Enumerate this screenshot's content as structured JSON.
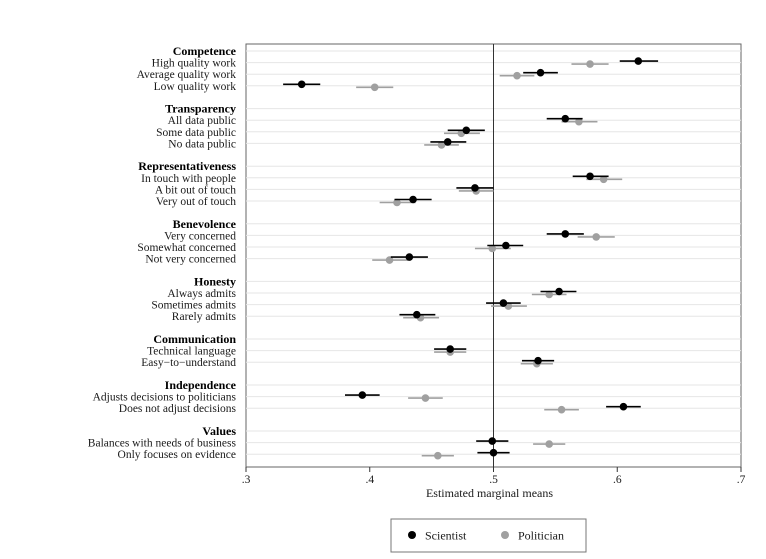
{
  "chart_data": {
    "type": "dot-whisker",
    "xlabel": "Estimated marginal means",
    "xlim": [
      0.3,
      0.7
    ],
    "xticks": [
      {
        "value": 0.3,
        "label": ".3"
      },
      {
        "value": 0.4,
        "label": ".4"
      },
      {
        "value": 0.5,
        "label": ".5"
      },
      {
        "value": 0.6,
        "label": ".6"
      },
      {
        "value": 0.7,
        "label": ".7"
      }
    ],
    "reference_line": 0.5,
    "colors": {
      "Scientist": "#000000",
      "Politician": "#a0a0a0"
    },
    "legend": [
      "Scientist",
      "Politician"
    ],
    "groups": [
      {
        "header": "Competence",
        "items": [
          {
            "label": "High quality work",
            "Scientist": [
              0.617,
              0.602,
              0.633
            ],
            "Politician": [
              0.578,
              0.563,
              0.593
            ]
          },
          {
            "label": "Average quality work",
            "Scientist": [
              0.538,
              0.524,
              0.552
            ],
            "Politician": [
              0.519,
              0.505,
              0.533
            ]
          },
          {
            "label": "Low quality work",
            "Scientist": [
              0.345,
              0.33,
              0.36
            ],
            "Politician": [
              0.404,
              0.389,
              0.419
            ]
          }
        ]
      },
      {
        "header": "Transparency",
        "items": [
          {
            "label": "All data public",
            "Scientist": [
              0.558,
              0.543,
              0.572
            ],
            "Politician": [
              0.569,
              0.555,
              0.584
            ]
          },
          {
            "label": "Some data public",
            "Scientist": [
              0.478,
              0.463,
              0.493
            ],
            "Politician": [
              0.474,
              0.46,
              0.489
            ]
          },
          {
            "label": "No data public",
            "Scientist": [
              0.463,
              0.449,
              0.478
            ],
            "Politician": [
              0.458,
              0.444,
              0.472
            ]
          }
        ]
      },
      {
        "header": "Representativeness",
        "items": [
          {
            "label": "In touch with people",
            "Scientist": [
              0.578,
              0.564,
              0.593
            ],
            "Politician": [
              0.589,
              0.575,
              0.604
            ]
          },
          {
            "label": "A bit out of touch",
            "Scientist": [
              0.485,
              0.47,
              0.5
            ],
            "Politician": [
              0.486,
              0.472,
              0.5
            ]
          },
          {
            "label": "Very out of touch",
            "Scientist": [
              0.435,
              0.42,
              0.45
            ],
            "Politician": [
              0.422,
              0.408,
              0.437
            ]
          }
        ]
      },
      {
        "header": "Benevolence",
        "items": [
          {
            "label": "Very concerned",
            "Scientist": [
              0.558,
              0.543,
              0.573
            ],
            "Politician": [
              0.583,
              0.568,
              0.598
            ]
          },
          {
            "label": "Somewhat concerned",
            "Scientist": [
              0.51,
              0.495,
              0.524
            ],
            "Politician": [
              0.499,
              0.485,
              0.514
            ]
          },
          {
            "label": "Not very concerned",
            "Scientist": [
              0.432,
              0.417,
              0.447
            ],
            "Politician": [
              0.416,
              0.402,
              0.431
            ]
          }
        ]
      },
      {
        "header": "Honesty",
        "items": [
          {
            "label": "Always admits",
            "Scientist": [
              0.553,
              0.538,
              0.567
            ],
            "Politician": [
              0.545,
              0.531,
              0.559
            ]
          },
          {
            "label": "Sometimes admits",
            "Scientist": [
              0.508,
              0.494,
              0.522
            ],
            "Politician": [
              0.512,
              0.498,
              0.527
            ]
          },
          {
            "label": "Rarely admits",
            "Scientist": [
              0.438,
              0.424,
              0.453
            ],
            "Politician": [
              0.441,
              0.427,
              0.456
            ]
          }
        ]
      },
      {
        "header": "Communication",
        "items": [
          {
            "label": "Technical language",
            "Scientist": [
              0.465,
              0.452,
              0.478
            ],
            "Politician": [
              0.465,
              0.452,
              0.478
            ]
          },
          {
            "label": "Easy−to−understand",
            "Scientist": [
              0.536,
              0.523,
              0.549
            ],
            "Politician": [
              0.535,
              0.522,
              0.548
            ]
          }
        ]
      },
      {
        "header": "Independence",
        "items": [
          {
            "label": "Adjusts decisions to politicians",
            "Scientist": [
              0.394,
              0.38,
              0.408
            ],
            "Politician": [
              0.445,
              0.431,
              0.459
            ]
          },
          {
            "label": "Does not adjust decisions",
            "Scientist": [
              0.605,
              0.591,
              0.619
            ],
            "Politician": [
              0.555,
              0.541,
              0.569
            ]
          }
        ]
      },
      {
        "header": "Values",
        "items": [
          {
            "label": "Balances with needs of business",
            "Scientist": [
              0.499,
              0.486,
              0.512
            ],
            "Politician": [
              0.545,
              0.532,
              0.558
            ]
          },
          {
            "label": "Only focuses on evidence",
            "Scientist": [
              0.5,
              0.487,
              0.513
            ],
            "Politician": [
              0.455,
              0.442,
              0.468
            ]
          }
        ]
      }
    ]
  }
}
